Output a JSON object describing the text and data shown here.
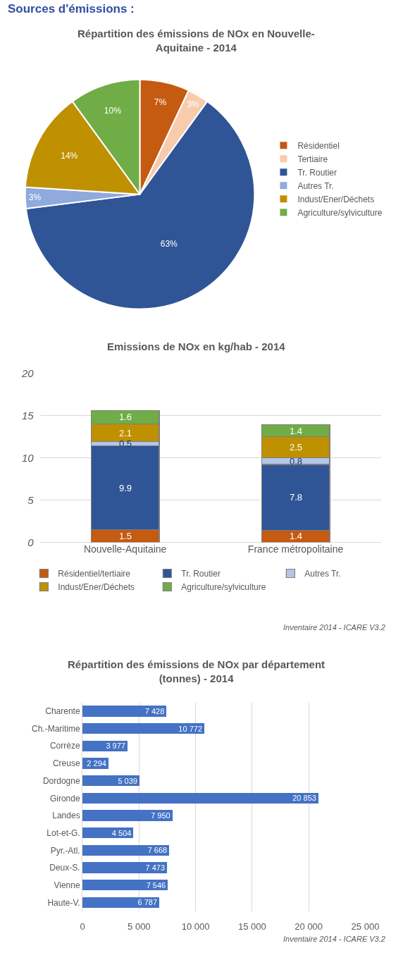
{
  "chart_data": [
    {
      "type": "pie",
      "title": "Répartition des émissions de NOx en Nouvelle-\nAquitaine - 2014",
      "annotations": [
        "Sources d'émissions :"
      ],
      "legend": "right",
      "categories": [
        "Résidentiel",
        "Tertiaire",
        "Tr. Routier",
        "Autres Tr.",
        "Indust/Ener/Déchets",
        "Agriculture/sylviculture"
      ],
      "values": [
        7,
        3,
        63,
        3,
        14,
        10
      ],
      "value_labels": [
        "7%",
        "3%",
        "63%",
        "3%",
        "14%",
        "10%"
      ],
      "colors": [
        "#c55a11",
        "#f8cbad",
        "#2f5597",
        "#8faadc",
        "#bf9000",
        "#70ad47"
      ]
    },
    {
      "type": "bar",
      "title": "Emissions de NOx en kg/hab - 2014",
      "annotations": [
        "Inventaire 2014 - ICARE V3.2"
      ],
      "stacked": true,
      "data_labels": true,
      "legend": "bottom",
      "grid": "y",
      "categories": [
        "Nouvelle-Aquitaine",
        "France métropolitaine"
      ],
      "ylim": [
        0,
        20
      ],
      "yticks": [
        0,
        5,
        10,
        15,
        20
      ],
      "series": [
        {
          "name": "Résidentiel/tertiaire",
          "color": "#c55a11",
          "values": [
            1.5,
            1.4
          ]
        },
        {
          "name": "Tr. Routier",
          "color": "#2f5597",
          "values": [
            9.9,
            7.8
          ]
        },
        {
          "name": "Autres Tr.",
          "color": "#b4c7e7",
          "values": [
            0.5,
            0.8
          ]
        },
        {
          "name": "Indust/Ener/Déchets",
          "color": "#bf9000",
          "values": [
            2.1,
            2.5
          ]
        },
        {
          "name": "Agriculture/sylviculture",
          "color": "#70ad47",
          "values": [
            1.6,
            1.4
          ]
        }
      ]
    },
    {
      "type": "bar",
      "orientation": "horizontal",
      "title": "Répartition des émissions de NOx par département\n(tonnes) - 2014",
      "annotations": [
        "Inventaire 2014 - ICARE V3.2"
      ],
      "grid": "x",
      "categories": [
        "Charente",
        "Ch.-Maritime",
        "Corrèze",
        "Creuse",
        "Dordogne",
        "Gironde",
        "Landes",
        "Lot-et-G.",
        "Pyr.-Atl.",
        "Deux-S.",
        "Vienne",
        "Haute-V."
      ],
      "values": [
        7428,
        10772,
        3977,
        2294,
        5039,
        20853,
        7950,
        4504,
        7668,
        7473,
        7546,
        6787
      ],
      "value_labels": [
        "7 428",
        "10 772",
        "3 977",
        "2 294",
        "5 039",
        "20 853",
        "7 950",
        "4 504",
        "7 668",
        "7 473",
        "7 546",
        "6 787"
      ],
      "color": "#4472c4",
      "xlim": [
        0,
        25000
      ],
      "xticks": [
        0,
        {
          "value": 5000,
          "label": "5 000"
        },
        {
          "value": 10000,
          "label": "10 000"
        },
        {
          "value": 15000,
          "label": "15 000"
        },
        {
          "value": 20000,
          "label": "20 000"
        },
        {
          "value": 25000,
          "label": "25 000"
        }
      ]
    }
  ]
}
